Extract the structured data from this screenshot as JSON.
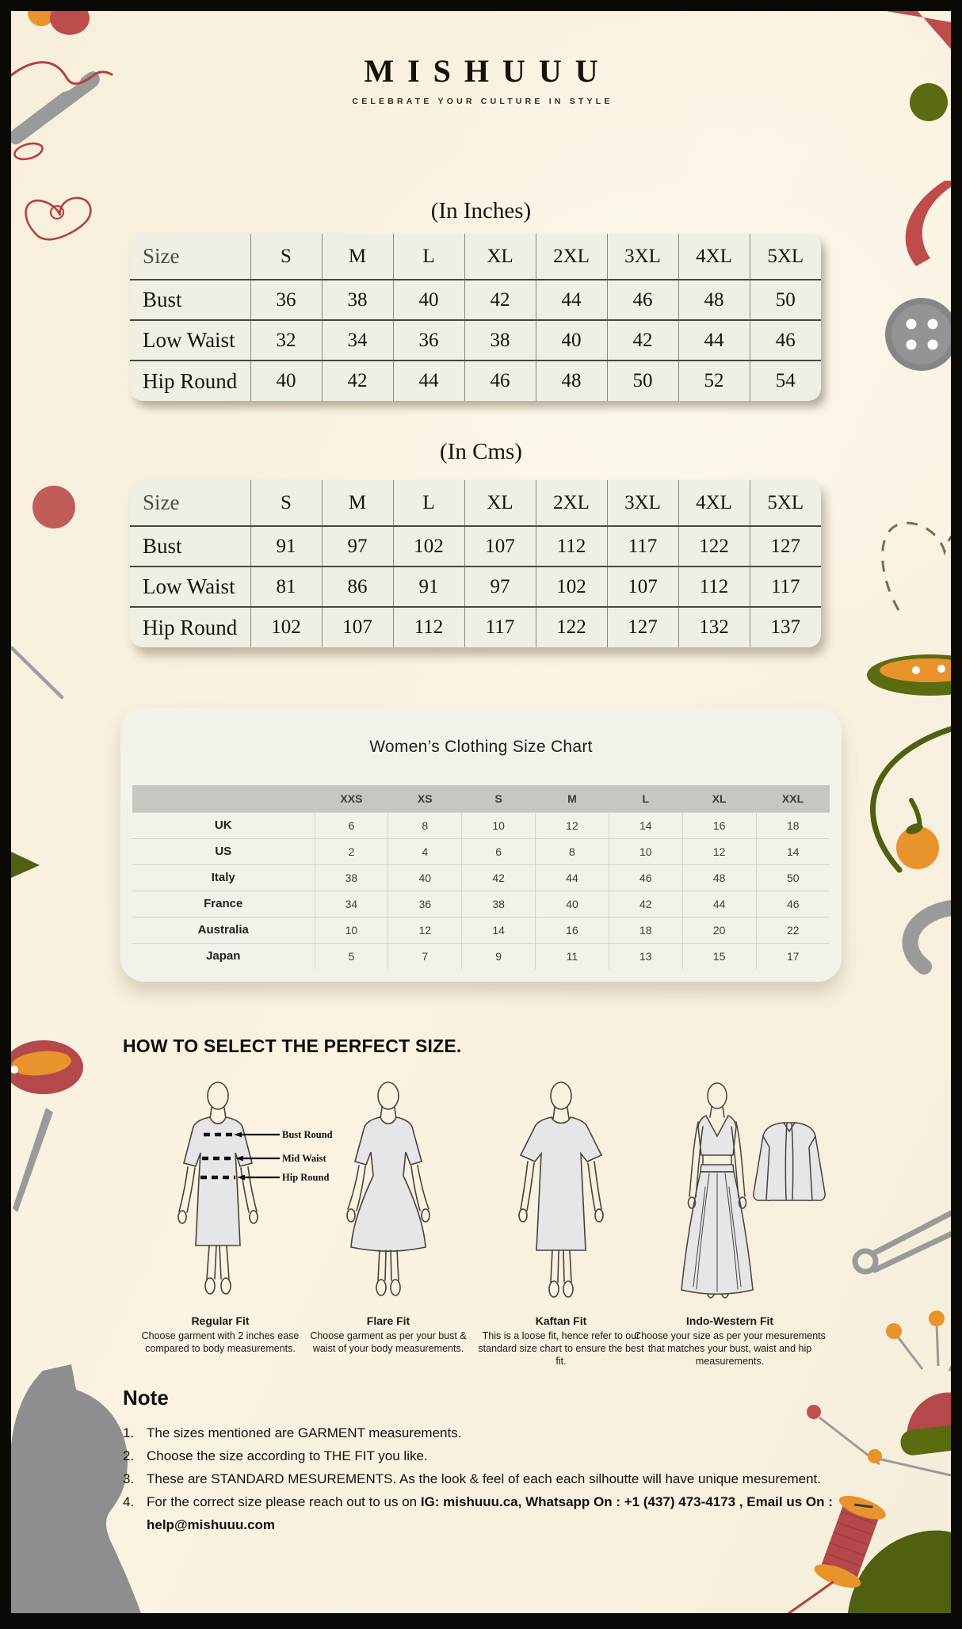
{
  "brand": {
    "logo": "MISHUUU",
    "tagline": "CELEBRATE YOUR CULTURE IN STYLE"
  },
  "inches_table": {
    "title": "(In Inches)",
    "header": [
      "Size",
      "S",
      "M",
      "L",
      "XL",
      "2XL",
      "3XL",
      "4XL",
      "5XL"
    ],
    "rows": [
      {
        "label": "Bust",
        "values": [
          "36",
          "38",
          "40",
          "42",
          "44",
          "46",
          "48",
          "50"
        ]
      },
      {
        "label": "Low Waist",
        "values": [
          "32",
          "34",
          "36",
          "38",
          "40",
          "42",
          "44",
          "46"
        ]
      },
      {
        "label": "Hip Round",
        "values": [
          "40",
          "42",
          "44",
          "46",
          "48",
          "50",
          "52",
          "54"
        ]
      }
    ]
  },
  "cms_table": {
    "title": "(In Cms)",
    "header": [
      "Size",
      "S",
      "M",
      "L",
      "XL",
      "2XL",
      "3XL",
      "4XL",
      "5XL"
    ],
    "rows": [
      {
        "label": "Bust",
        "values": [
          "91",
          "97",
          "102",
          "107",
          "112",
          "117",
          "122",
          "127"
        ]
      },
      {
        "label": "Low Waist",
        "values": [
          "81",
          "86",
          "91",
          "97",
          "102",
          "107",
          "112",
          "117"
        ]
      },
      {
        "label": "Hip Round",
        "values": [
          "102",
          "107",
          "112",
          "117",
          "122",
          "127",
          "132",
          "137"
        ]
      }
    ]
  },
  "world_chart": {
    "title": "Women’s Clothing Size Chart",
    "header": [
      "",
      "XXS",
      "XS",
      "S",
      "M",
      "L",
      "XL",
      "XXL"
    ],
    "rows": [
      {
        "label": "UK",
        "values": [
          "6",
          "8",
          "10",
          "12",
          "14",
          "16",
          "18"
        ]
      },
      {
        "label": "US",
        "values": [
          "2",
          "4",
          "6",
          "8",
          "10",
          "12",
          "14"
        ]
      },
      {
        "label": "Italy",
        "values": [
          "38",
          "40",
          "42",
          "44",
          "46",
          "48",
          "50"
        ]
      },
      {
        "label": "France",
        "values": [
          "34",
          "36",
          "38",
          "40",
          "42",
          "44",
          "46"
        ]
      },
      {
        "label": "Australia",
        "values": [
          "10",
          "12",
          "14",
          "16",
          "18",
          "20",
          "22"
        ]
      },
      {
        "label": "Japan",
        "values": [
          "5",
          "7",
          "9",
          "11",
          "13",
          "15",
          "17"
        ]
      }
    ]
  },
  "how_to": {
    "heading": "HOW TO SELECT THE PERFECT SIZE.",
    "measure_labels": [
      "Bust Round",
      "Mid Waist",
      "Hip Round"
    ],
    "fits": [
      {
        "name": "Regular Fit",
        "desc": "Choose garment with 2 inches ease compared to body measurements."
      },
      {
        "name": "Flare Fit",
        "desc": "Choose garment as per your bust & waist of your body measurements."
      },
      {
        "name": "Kaftan Fit",
        "desc": "This is a loose fit, hence refer to our standard size chart to ensure the best fit."
      },
      {
        "name": "Indo-Western Fit",
        "desc": "Choose your size as per your mesurements that matches your bust, waist and hip measurements."
      }
    ]
  },
  "note": {
    "heading": "Note",
    "items": [
      {
        "num": "1.",
        "text": "The sizes mentioned are GARMENT measurements."
      },
      {
        "num": "2.",
        "text": "Choose the size according to THE FIT you like."
      },
      {
        "num": "3.",
        "text": "These are STANDARD MESUREMENTS. As the look & feel of each each silhoutte will have unique mesurement."
      },
      {
        "num": "4.",
        "text": "For the correct size please reach out to us on ",
        "bold": "IG: mishuuu.ca, Whatsapp On : +1 (437) 473-4173 , Email us On : help@mishuuu.com"
      }
    ]
  },
  "colors": {
    "frame": "#0b0906",
    "cream": "#f8f1de",
    "card": "#f0efe4",
    "header_band": "#c7c6c1",
    "red": "#bf4c4c",
    "dusty_red": "#b5484a",
    "orange": "#e8932c",
    "olive": "#5a6b10",
    "dark_olive": "#4f6010",
    "gray": "#9a9a9a"
  }
}
